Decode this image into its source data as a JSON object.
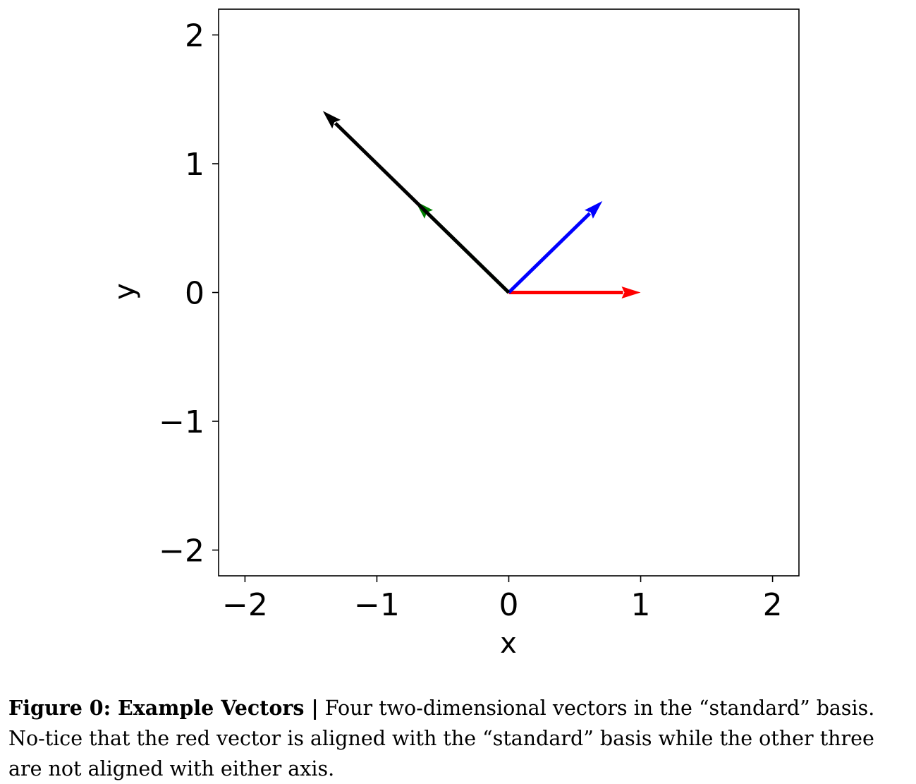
{
  "chart_data": {
    "type": "quiver",
    "title": "",
    "xlabel": "x",
    "ylabel": "y",
    "xlim": [
      -2.2,
      2.2
    ],
    "ylim": [
      -2.2,
      2.2
    ],
    "xticks": [
      -2,
      -1,
      0,
      1,
      2
    ],
    "yticks": [
      -2,
      -1,
      0,
      1,
      2
    ],
    "xtick_labels": [
      "−2",
      "−1",
      "0",
      "1",
      "2"
    ],
    "ytick_labels": [
      "−2",
      "−1",
      "0",
      "1",
      "2"
    ],
    "grid": false,
    "legend": "none",
    "vectors": [
      {
        "color": "#ff0000",
        "x0": 0,
        "y0": 0,
        "dx": 1.0,
        "dy": 0.0
      },
      {
        "color": "#0000ff",
        "x0": 0,
        "y0": 0,
        "dx": 0.71,
        "dy": 0.71
      },
      {
        "color": "#008000",
        "x0": 0,
        "y0": 0,
        "dx": -0.71,
        "dy": 0.71
      },
      {
        "color": "#000000",
        "x0": 0,
        "y0": 0,
        "dx": -1.41,
        "dy": 1.41
      }
    ]
  },
  "caption": {
    "label": "Figure 0: Example Vectors |",
    "text": " Four two-dimensional vectors in the “standard” basis. No-tice that the red vector is aligned with the “standard” basis while the other three are not aligned with either axis."
  }
}
